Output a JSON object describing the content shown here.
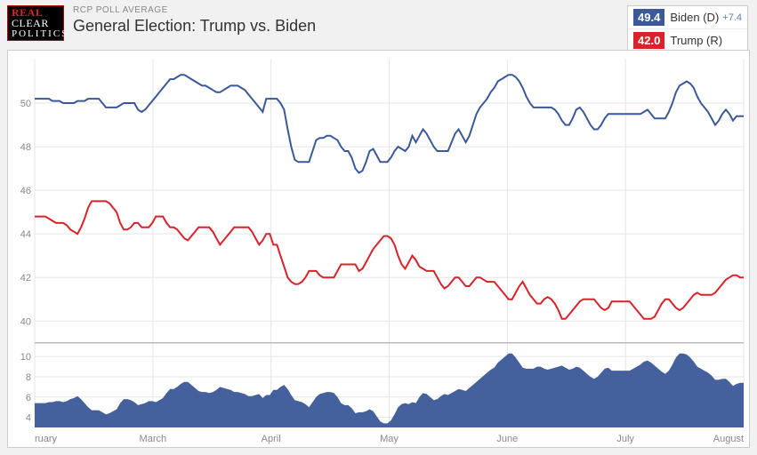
{
  "logo": {
    "line1": "REAL",
    "line2": "CLEAR",
    "line3": "POLITICS"
  },
  "subtitle": "RCP POLL AVERAGE",
  "title": "General Election: Trump vs. Biden",
  "legend": {
    "biden": {
      "value": "49.4",
      "label": "Biden (D)",
      "lead": "+7.4",
      "color": "#3b5998"
    },
    "trump": {
      "value": "42.0",
      "label": "Trump (R)",
      "color": "#d8232a"
    }
  },
  "chart": {
    "type": "line",
    "colors": {
      "biden": "#3b5998",
      "trump": "#d8232a",
      "spread_fill": "#3b5998",
      "grid": "#e5e5e5",
      "separator": "#bbbbbb",
      "background": "#ffffff",
      "axis_text": "#888888"
    },
    "fontsize_ticks": 11,
    "line_width": 2,
    "top_panel": {
      "ylim": [
        39,
        52
      ],
      "yticks": [
        40,
        42,
        44,
        46,
        48,
        50
      ]
    },
    "bottom_panel": {
      "ylim": [
        3,
        11
      ],
      "yticks": [
        4,
        6,
        8,
        10
      ]
    },
    "x_labels": [
      "ruary",
      "March",
      "April",
      "May",
      "June",
      "July",
      "August"
    ],
    "n_points": 200,
    "biden": [
      50.2,
      50.2,
      50.2,
      50.2,
      50.2,
      50.1,
      50.1,
      50.1,
      50.0,
      50.0,
      50.0,
      50.0,
      50.1,
      50.1,
      50.1,
      50.2,
      50.2,
      50.2,
      50.2,
      50.0,
      49.8,
      49.8,
      49.8,
      49.8,
      49.9,
      50.0,
      50.0,
      50.0,
      50.0,
      49.7,
      49.6,
      49.7,
      49.9,
      50.1,
      50.3,
      50.5,
      50.7,
      50.9,
      51.1,
      51.1,
      51.2,
      51.3,
      51.3,
      51.2,
      51.1,
      51.0,
      50.9,
      50.8,
      50.8,
      50.7,
      50.6,
      50.5,
      50.5,
      50.6,
      50.7,
      50.8,
      50.8,
      50.8,
      50.7,
      50.6,
      50.4,
      50.2,
      50.0,
      49.8,
      49.6,
      50.2,
      50.2,
      50.2,
      50.2,
      50.0,
      49.7,
      48.8,
      48.0,
      47.4,
      47.3,
      47.3,
      47.3,
      47.3,
      47.8,
      48.3,
      48.4,
      48.4,
      48.5,
      48.5,
      48.4,
      48.3,
      48.0,
      47.8,
      47.8,
      47.5,
      47.0,
      46.8,
      46.9,
      47.3,
      47.8,
      47.9,
      47.6,
      47.3,
      47.3,
      47.3,
      47.5,
      47.8,
      48.0,
      47.9,
      47.8,
      48.0,
      48.5,
      48.2,
      48.5,
      48.8,
      48.6,
      48.3,
      48.0,
      47.8,
      47.8,
      47.8,
      47.8,
      48.2,
      48.6,
      48.8,
      48.5,
      48.2,
      48.5,
      49.0,
      49.5,
      49.8,
      50.0,
      50.2,
      50.5,
      50.7,
      51.0,
      51.1,
      51.2,
      51.3,
      51.3,
      51.2,
      51.0,
      50.7,
      50.3,
      50.0,
      49.8,
      49.8,
      49.8,
      49.8,
      49.8,
      49.8,
      49.7,
      49.5,
      49.2,
      49.0,
      49.0,
      49.3,
      49.7,
      49.8,
      49.6,
      49.3,
      49.0,
      48.8,
      48.8,
      49.0,
      49.3,
      49.5,
      49.5,
      49.5,
      49.5,
      49.5,
      49.5,
      49.5,
      49.5,
      49.5,
      49.5,
      49.6,
      49.7,
      49.5,
      49.3,
      49.3,
      49.3,
      49.3,
      49.6,
      50.0,
      50.5,
      50.8,
      50.9,
      51.0,
      50.9,
      50.7,
      50.3,
      50.0,
      49.8,
      49.6,
      49.3,
      49.0,
      49.2,
      49.5,
      49.7,
      49.5,
      49.2,
      49.4,
      49.4,
      49.4
    ],
    "trump": [
      44.8,
      44.8,
      44.8,
      44.8,
      44.7,
      44.6,
      44.5,
      44.5,
      44.5,
      44.4,
      44.2,
      44.1,
      44.0,
      44.3,
      44.7,
      45.2,
      45.5,
      45.5,
      45.5,
      45.5,
      45.5,
      45.4,
      45.2,
      45.0,
      44.5,
      44.2,
      44.2,
      44.3,
      44.5,
      44.5,
      44.3,
      44.3,
      44.3,
      44.5,
      44.8,
      44.8,
      44.8,
      44.5,
      44.3,
      44.3,
      44.2,
      44.0,
      43.8,
      43.7,
      43.9,
      44.1,
      44.3,
      44.3,
      44.3,
      44.3,
      44.1,
      43.8,
      43.5,
      43.7,
      43.9,
      44.1,
      44.3,
      44.3,
      44.3,
      44.3,
      44.3,
      44.1,
      43.8,
      43.5,
      43.7,
      44.0,
      44.0,
      43.5,
      43.5,
      43.0,
      42.5,
      42.0,
      41.8,
      41.7,
      41.7,
      41.8,
      42.0,
      42.3,
      42.3,
      42.3,
      42.1,
      42.0,
      42.0,
      42.0,
      42.0,
      42.3,
      42.6,
      42.6,
      42.6,
      42.6,
      42.6,
      42.3,
      42.4,
      42.7,
      43.0,
      43.3,
      43.5,
      43.7,
      43.9,
      43.9,
      43.8,
      43.5,
      43.0,
      42.6,
      42.4,
      42.7,
      43.0,
      42.8,
      42.5,
      42.4,
      42.3,
      42.3,
      42.3,
      42.0,
      41.7,
      41.5,
      41.6,
      41.8,
      42.0,
      42.0,
      41.8,
      41.6,
      41.6,
      41.8,
      42.0,
      42.0,
      41.9,
      41.8,
      41.8,
      41.8,
      41.6,
      41.4,
      41.2,
      41.0,
      41.0,
      41.3,
      41.6,
      41.8,
      41.5,
      41.2,
      41.0,
      40.8,
      40.8,
      41.0,
      41.1,
      41.0,
      40.8,
      40.5,
      40.1,
      40.1,
      40.3,
      40.5,
      40.7,
      40.9,
      41.0,
      41.0,
      41.0,
      41.0,
      40.8,
      40.6,
      40.5,
      40.6,
      40.9,
      40.9,
      40.9,
      40.9,
      40.9,
      40.9,
      40.7,
      40.5,
      40.3,
      40.1,
      40.1,
      40.1,
      40.2,
      40.5,
      40.8,
      41.0,
      41.0,
      40.8,
      40.6,
      40.5,
      40.6,
      40.8,
      41.0,
      41.2,
      41.3,
      41.2,
      41.2,
      41.2,
      41.2,
      41.3,
      41.5,
      41.7,
      41.9,
      42.0,
      42.1,
      42.1,
      42.0,
      42.0
    ]
  }
}
